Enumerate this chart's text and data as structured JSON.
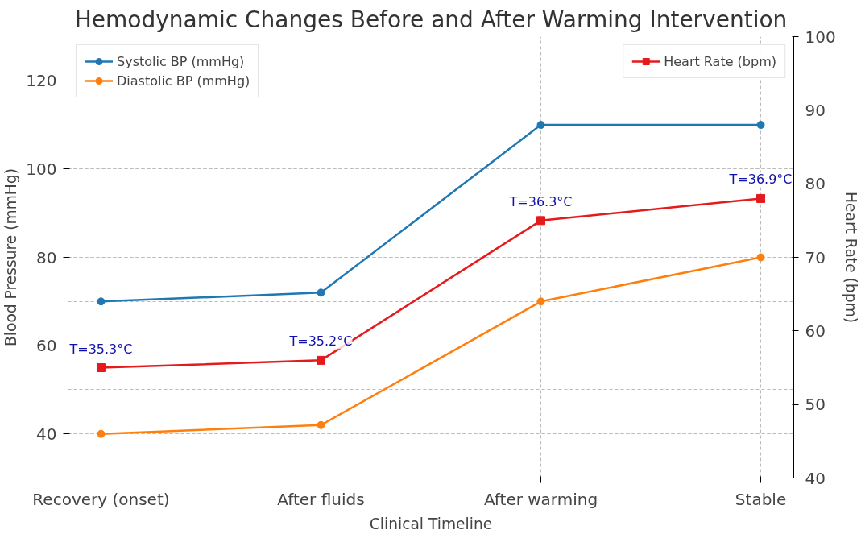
{
  "chart_data": {
    "type": "line",
    "title": "Hemodynamic Changes Before and After Warming Intervention",
    "xlabel": "Clinical Timeline",
    "ylabel": "Blood Pressure (mmHg)",
    "y2label": "Heart Rate (bpm)",
    "categories": [
      "Recovery (onset)",
      "After fluids",
      "After warming",
      "Stable"
    ],
    "series": [
      {
        "name": "Systolic BP (mmHg)",
        "color": "#1f77b4",
        "marker": "circle",
        "values": [
          70,
          72,
          110,
          110
        ]
      },
      {
        "name": "Diastolic BP (mmHg)",
        "color": "#ff7f0e",
        "marker": "circle",
        "values": [
          40,
          42,
          70,
          80
        ]
      },
      {
        "name": "Heart Rate (bpm)",
        "color": "#e41a1c",
        "marker": "square",
        "axis": "y2",
        "values": [
          55,
          56,
          75,
          78
        ]
      }
    ],
    "ylim": [
      30,
      130
    ],
    "yticks": [
      40,
      60,
      80,
      100,
      120
    ],
    "y2lim": [
      40,
      100
    ],
    "y2ticks": [
      40,
      50,
      60,
      70,
      80,
      90,
      100
    ],
    "annotations": [
      "T=35.3°C",
      "T=35.2°C",
      "T=36.3°C",
      "T=36.9°C"
    ],
    "grid": true,
    "legend": "top left",
    "line_style": "solid"
  }
}
